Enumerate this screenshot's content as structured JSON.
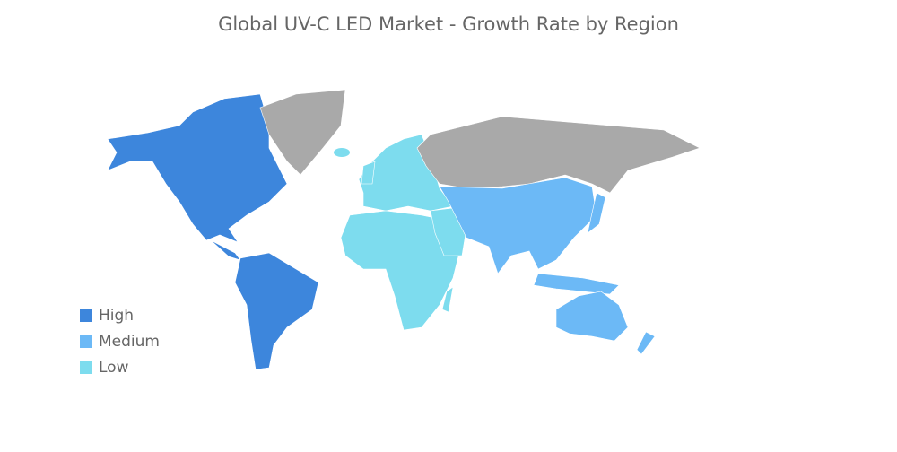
{
  "title": "Global UV-C LED Market - Growth Rate by Region",
  "legend": [
    {
      "label": "High",
      "color": "#3d86dc"
    },
    {
      "label": "Medium",
      "color": "#6cb9f6"
    },
    {
      "label": "Low",
      "color": "#7ddcee"
    }
  ]
}
